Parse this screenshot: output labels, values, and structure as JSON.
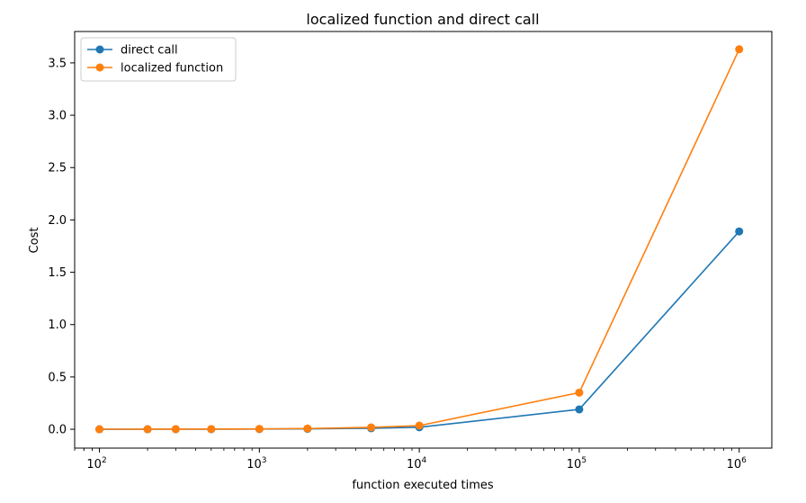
{
  "chart_data": {
    "type": "line",
    "title": "localized function and direct call",
    "xlabel": "function executed times",
    "ylabel": "Cost",
    "xscale": "log",
    "xlim": [
      70,
      1600000
    ],
    "ylim": [
      -0.18,
      3.8
    ],
    "xticks": [
      {
        "value": 100,
        "base": "10",
        "exp": "2"
      },
      {
        "value": 1000,
        "base": "10",
        "exp": "3"
      },
      {
        "value": 10000,
        "base": "10",
        "exp": "4"
      },
      {
        "value": 100000,
        "base": "10",
        "exp": "5"
      },
      {
        "value": 1000000,
        "base": "10",
        "exp": "6"
      }
    ],
    "yticks": [
      {
        "value": 0.0,
        "label": "0.0"
      },
      {
        "value": 0.5,
        "label": "0.5"
      },
      {
        "value": 1.0,
        "label": "1.0"
      },
      {
        "value": 1.5,
        "label": "1.5"
      },
      {
        "value": 2.0,
        "label": "2.0"
      },
      {
        "value": 2.5,
        "label": "2.5"
      },
      {
        "value": 3.0,
        "label": "3.0"
      },
      {
        "value": 3.5,
        "label": "3.5"
      }
    ],
    "x": [
      100,
      200,
      300,
      500,
      1000,
      2000,
      5000,
      10000,
      100000,
      1000000
    ],
    "series": [
      {
        "name": "direct call",
        "color": "#1f77b4",
        "values": [
          0.0002,
          0.0004,
          0.0006,
          0.001,
          0.002,
          0.004,
          0.01,
          0.019,
          0.19,
          1.89
        ]
      },
      {
        "name": "localized function",
        "color": "#ff7f0e",
        "values": [
          0.0004,
          0.0008,
          0.0011,
          0.0018,
          0.0035,
          0.007,
          0.018,
          0.035,
          0.35,
          3.63
        ]
      }
    ],
    "legend": "upper left",
    "grid": false,
    "marker": "circle"
  }
}
